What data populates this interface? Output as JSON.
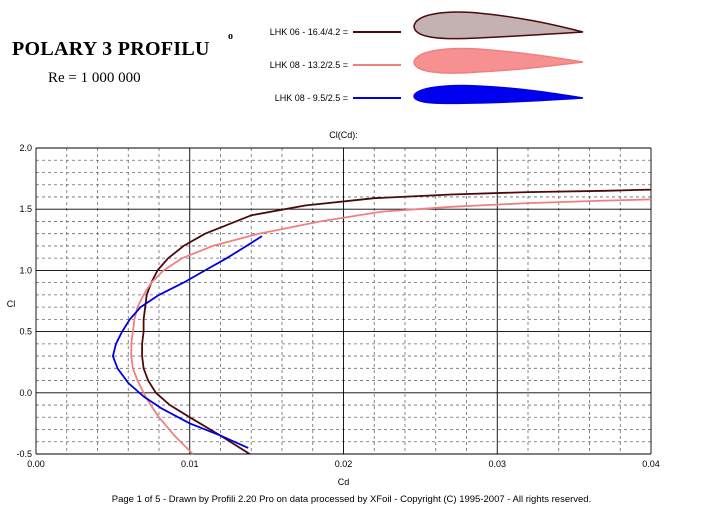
{
  "header": {
    "title": "POLARY  3 PROFILU",
    "title_superscript": "o",
    "reynolds": "Re = 1 000 000"
  },
  "footer": {
    "text": "Page 1 of 5   -   Drawn by Profili 2.20 Pro on data processed by  XFoil - Copyright (C) 1995-2007 - All rights reserved."
  },
  "colors": {
    "series_1": "#4a0a0a",
    "series_2": "#f08080",
    "series_3": "#0000e0",
    "profile_1_fill": "#c4b2b2",
    "profile_2_fill": "#f79090",
    "profile_3_fill": "#0000ee"
  },
  "legend": [
    {
      "label": "LHK  06  -  16.4/4.2 =",
      "profile": "thick-profile-icon"
    },
    {
      "label": "LHK 08 - 13.2/2.5 =",
      "profile": "medium-profile-icon"
    },
    {
      "label": "LHK  08 - 9.5/2.5 =",
      "profile": "thin-profile-icon"
    }
  ],
  "chart_data": {
    "type": "line",
    "title": "Cl(Cd):",
    "xlabel": "Cd",
    "ylabel": "Cl",
    "xlim": [
      0.0,
      0.04
    ],
    "ylim": [
      -0.5,
      2.0
    ],
    "x_ticks": [
      "0.00",
      "0.01",
      "0.02",
      "0.03",
      "0.04"
    ],
    "y_ticks": [
      "-0.5",
      "0.0",
      "0.5",
      "1.0",
      "1.5",
      "2.0"
    ],
    "grid": true,
    "series": [
      {
        "name": "LHK  06  -  16.4/4.2",
        "points": [
          [
            0.0139,
            -0.5
          ],
          [
            0.012,
            -0.35
          ],
          [
            0.01,
            -0.2
          ],
          [
            0.0087,
            -0.1
          ],
          [
            0.0078,
            0.0
          ],
          [
            0.0073,
            0.1
          ],
          [
            0.007,
            0.2
          ],
          [
            0.0069,
            0.3
          ],
          [
            0.0069,
            0.4
          ],
          [
            0.007,
            0.5
          ],
          [
            0.007,
            0.6
          ],
          [
            0.0071,
            0.7
          ],
          [
            0.0072,
            0.8
          ],
          [
            0.0075,
            0.9
          ],
          [
            0.0079,
            1.0
          ],
          [
            0.0086,
            1.1
          ],
          [
            0.0096,
            1.2
          ],
          [
            0.011,
            1.3
          ],
          [
            0.014,
            1.45
          ],
          [
            0.0175,
            1.53
          ],
          [
            0.022,
            1.59
          ],
          [
            0.027,
            1.62
          ],
          [
            0.032,
            1.64
          ],
          [
            0.037,
            1.65
          ],
          [
            0.04,
            1.66
          ]
        ]
      },
      {
        "name": "LHK 08 - 13.2/2.5",
        "points": [
          [
            0.0102,
            -0.5
          ],
          [
            0.009,
            -0.35
          ],
          [
            0.008,
            -0.2
          ],
          [
            0.0072,
            -0.05
          ],
          [
            0.0066,
            0.1
          ],
          [
            0.0063,
            0.2
          ],
          [
            0.0062,
            0.3
          ],
          [
            0.0062,
            0.4
          ],
          [
            0.0063,
            0.5
          ],
          [
            0.0064,
            0.6
          ],
          [
            0.0066,
            0.7
          ],
          [
            0.007,
            0.8
          ],
          [
            0.0075,
            0.9
          ],
          [
            0.0083,
            1.0
          ],
          [
            0.0095,
            1.1
          ],
          [
            0.0115,
            1.2
          ],
          [
            0.0145,
            1.3
          ],
          [
            0.0185,
            1.4
          ],
          [
            0.0225,
            1.48
          ],
          [
            0.027,
            1.52
          ],
          [
            0.032,
            1.55
          ],
          [
            0.037,
            1.57
          ],
          [
            0.04,
            1.58
          ]
        ]
      },
      {
        "name": "LHK  08 - 9.5/2.5",
        "points": [
          [
            0.0138,
            -0.45
          ],
          [
            0.012,
            -0.35
          ],
          [
            0.01,
            -0.25
          ],
          [
            0.0082,
            -0.13
          ],
          [
            0.007,
            -0.03
          ],
          [
            0.006,
            0.08
          ],
          [
            0.0053,
            0.2
          ],
          [
            0.005,
            0.3
          ],
          [
            0.0052,
            0.4
          ],
          [
            0.0056,
            0.5
          ],
          [
            0.0061,
            0.6
          ],
          [
            0.0068,
            0.7
          ],
          [
            0.008,
            0.8
          ],
          [
            0.0096,
            0.9
          ],
          [
            0.011,
            1.0
          ],
          [
            0.0124,
            1.1
          ],
          [
            0.0137,
            1.2
          ],
          [
            0.0147,
            1.28
          ]
        ]
      }
    ]
  }
}
